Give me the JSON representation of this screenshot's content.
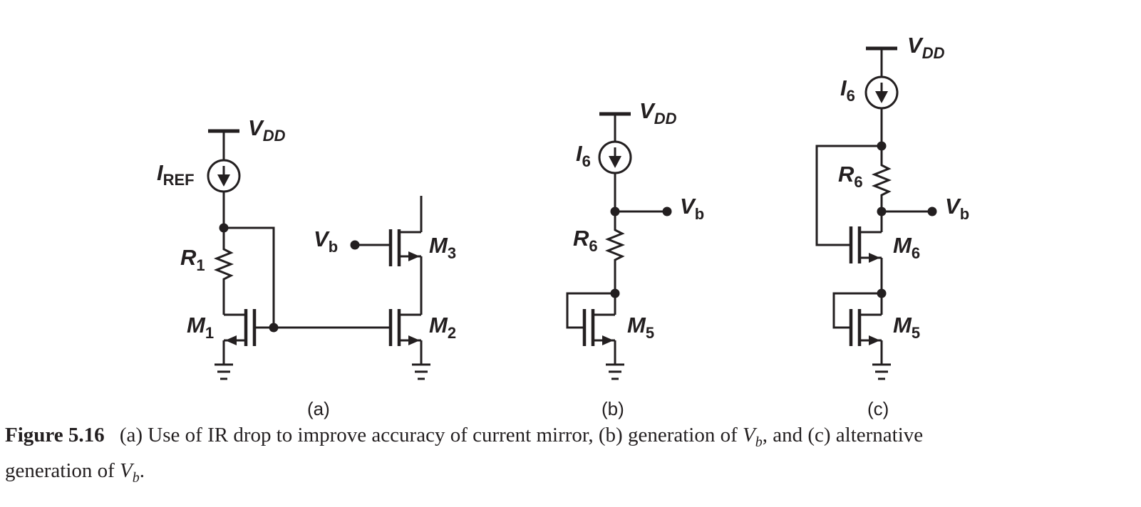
{
  "labels": {
    "vdd_main": "V",
    "vdd_sub": "DD",
    "iref_main": "I",
    "iref_sub": "REF",
    "r1_main": "R",
    "r1_sub": "1",
    "m1_main": "M",
    "m1_sub": "1",
    "m2_main": "M",
    "m2_sub": "2",
    "m3_main": "M",
    "m3_sub": "3",
    "vb_main": "V",
    "vb_sub": "b",
    "i6_main": "I",
    "i6_sub": "6",
    "r6_main": "R",
    "r6_sub": "6",
    "m5_main": "M",
    "m5_sub": "5",
    "m6_main": "M",
    "m6_sub": "6"
  },
  "parts": {
    "a": "(a)",
    "b": "(b)",
    "c": "(c)"
  },
  "caption": {
    "figure_label": "Figure 5.16",
    "text_1": "(a) Use of IR drop to improve accuracy of current mirror, (b) generation of",
    "vb_main": "V",
    "vb_sub": "b",
    "text_2": ", and (c) alternative",
    "text_3": "generation of",
    "text_4": "."
  }
}
